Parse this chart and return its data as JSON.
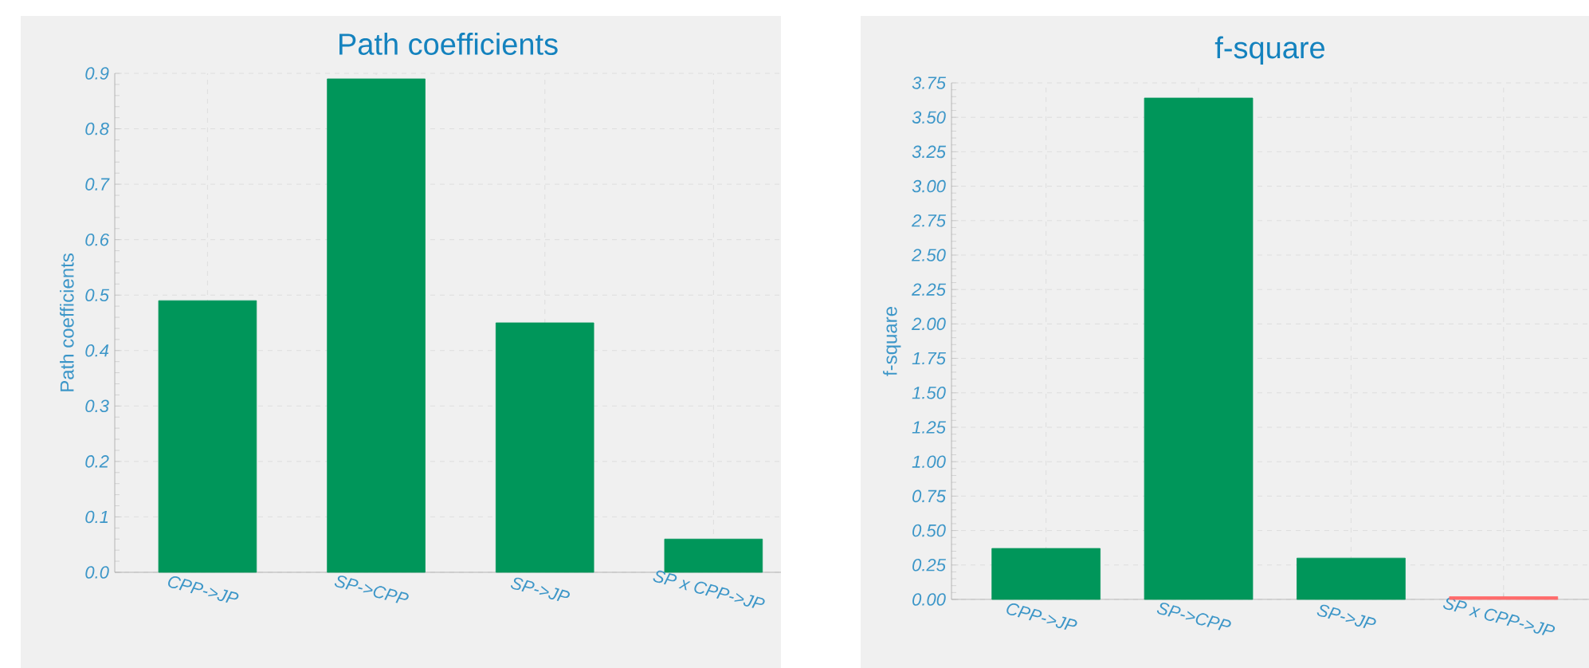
{
  "chart_data": [
    {
      "type": "bar",
      "title": "Path coefficients",
      "ylabel": "Path coefficients",
      "categories": [
        "CPP->JP",
        "SP->CPP",
        "SP->JP",
        "SP x CPP->JP"
      ],
      "values": [
        0.49,
        0.89,
        0.45,
        0.06
      ],
      "colors": [
        "#00965a",
        "#00965a",
        "#00965a",
        "#00965a"
      ],
      "ylim": [
        0,
        0.9
      ],
      "yticks": [
        {
          "value": 0,
          "label": "0.0"
        },
        0.1,
        0.2,
        0.3,
        0.4,
        0.5,
        0.6,
        0.7,
        0.8,
        0.9
      ],
      "grid": true
    },
    {
      "type": "bar",
      "title": "f-square",
      "ylabel": "f-square",
      "categories": [
        "CPP->JP",
        "SP->CPP",
        "SP->JP",
        "SP x CPP->JP"
      ],
      "values": [
        0.37,
        3.64,
        0.3,
        0.02
      ],
      "colors": [
        "#00965a",
        "#00965a",
        "#00965a",
        "#ff6b6b"
      ],
      "ylim": [
        0,
        3.75
      ],
      "yticks": [
        {
          "value": 0,
          "label": "0.00"
        },
        {
          "value": 0.25,
          "label": "0.25"
        },
        {
          "value": 0.5,
          "label": "0.50"
        },
        {
          "value": 0.75,
          "label": "0.75"
        },
        {
          "value": 1,
          "label": "1.00"
        },
        {
          "value": 1.25,
          "label": "1.25"
        },
        {
          "value": 1.5,
          "label": "1.50"
        },
        {
          "value": 1.75,
          "label": "1.75"
        },
        {
          "value": 2,
          "label": "2.00"
        },
        {
          "value": 2.25,
          "label": "2.25"
        },
        {
          "value": 2.5,
          "label": "2.50"
        },
        {
          "value": 2.75,
          "label": "2.75"
        },
        {
          "value": 3,
          "label": "3.00"
        },
        {
          "value": 3.25,
          "label": "3.25"
        },
        {
          "value": 3.5,
          "label": "3.50"
        },
        {
          "value": 3.75,
          "label": "3.75"
        }
      ],
      "grid": true
    }
  ]
}
